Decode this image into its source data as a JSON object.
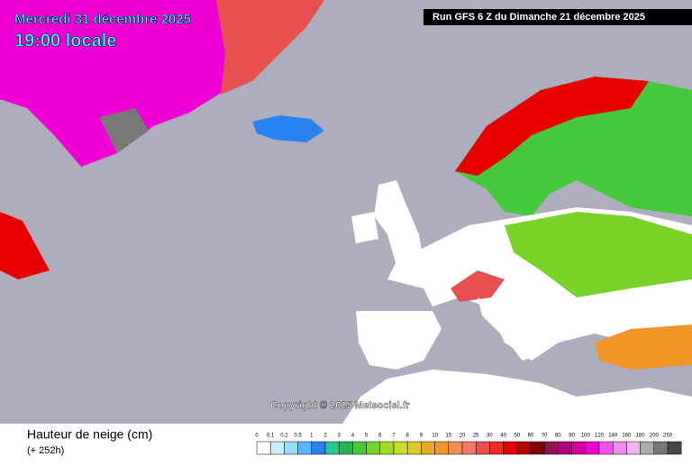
{
  "header": {
    "date": "Mercredi 31 décembre 2025",
    "time": "19:00 locale",
    "run": "Run GFS 6 Z du Dimanche 21 décembre 2025"
  },
  "copyright": "Copyright © 2025 Meteociel.fr",
  "legend": {
    "title": "Hauteur de neige (cm)",
    "lead": "(+ 252h)",
    "items": [
      {
        "label": "0",
        "color": "#ffffff"
      },
      {
        "label": "0.1",
        "color": "#c8f0ff"
      },
      {
        "label": "0.2",
        "color": "#96dcff"
      },
      {
        "label": "0.5",
        "color": "#5ab4ff"
      },
      {
        "label": "1",
        "color": "#2882f0"
      },
      {
        "label": "2",
        "color": "#28c896"
      },
      {
        "label": "3",
        "color": "#28b450"
      },
      {
        "label": "4",
        "color": "#46c83c"
      },
      {
        "label": "5",
        "color": "#78d228"
      },
      {
        "label": "6",
        "color": "#a0dc28"
      },
      {
        "label": "7",
        "color": "#c8dc28"
      },
      {
        "label": "8",
        "color": "#dcc828"
      },
      {
        "label": "9",
        "color": "#e6aa28"
      },
      {
        "label": "10",
        "color": "#f09628"
      },
      {
        "label": "15",
        "color": "#f08c50"
      },
      {
        "label": "20",
        "color": "#f07864"
      },
      {
        "label": "25",
        "color": "#e65050"
      },
      {
        "label": "30",
        "color": "#f02828"
      },
      {
        "label": "40",
        "color": "#e60000"
      },
      {
        "label": "50",
        "color": "#b40000"
      },
      {
        "label": "60",
        "color": "#820000"
      },
      {
        "label": "70",
        "color": "#8c1450"
      },
      {
        "label": "80",
        "color": "#b40078"
      },
      {
        "label": "90",
        "color": "#d200a0"
      },
      {
        "label": "100",
        "color": "#f000d2"
      },
      {
        "label": "120",
        "color": "#f050f0"
      },
      {
        "label": "140",
        "color": "#f08cf0"
      },
      {
        "label": "160",
        "color": "#f0b4f0"
      },
      {
        "label": "180",
        "color": "#aaaaaa"
      },
      {
        "label": "200",
        "color": "#787878"
      },
      {
        "label": "250",
        "color": "#464646"
      }
    ]
  }
}
